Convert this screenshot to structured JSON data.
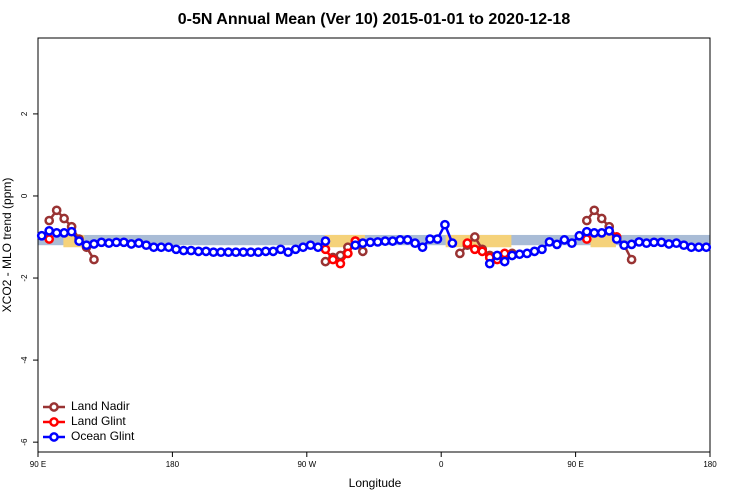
{
  "chart_data": {
    "type": "line",
    "title": "0-5N Annual Mean (Ver 10)   2015-01-01 to 2020-12-18",
    "xlabel": "Longitude",
    "ylabel": "XCO2 - MLO trend (ppm)",
    "xlim": [
      90,
      540
    ],
    "ylim": [
      -6.24,
      3.85
    ],
    "xticks": [
      {
        "value": 90,
        "label": "90 E"
      },
      180,
      {
        "value": 270,
        "label": "90 W"
      },
      {
        "value": 360,
        "label": "0"
      },
      {
        "value": 450,
        "label": "90 E"
      },
      {
        "value": 540,
        "label": "180"
      }
    ],
    "yticks": [
      -6,
      -4,
      -2,
      0,
      2
    ],
    "legend": "bottom-left",
    "bands": [
      {
        "color": "#a9bcd6",
        "x": [
          90,
          540
        ],
        "y": [
          -1.2,
          -0.95
        ]
      },
      {
        "color": "#f5d27a",
        "x": [
          107,
          121
        ],
        "y": [
          -1.25,
          -0.95
        ]
      },
      {
        "color": "#f5d27a",
        "x": [
          282,
          309
        ],
        "y": [
          -1.25,
          -0.95
        ]
      },
      {
        "color": "#f5d27a",
        "x": [
          363,
          407
        ],
        "y": [
          -1.25,
          -0.95
        ]
      },
      {
        "color": "#f5d27a",
        "x": [
          460,
          477
        ],
        "y": [
          -1.25,
          -0.95
        ]
      }
    ],
    "series": [
      {
        "name": "Land Nadir",
        "color": "#993333",
        "x": [
          97.5,
          102.5,
          107.5,
          112.5,
          117.5,
          122.5,
          127.5,
          200,
          282.5,
          287.5,
          292.5,
          297.5,
          302.5,
          307.5,
          340,
          372.5,
          377.5,
          382.5,
          387.5,
          392.5,
          402.5,
          407.5,
          430,
          457.5,
          462.5,
          467.5,
          472.5,
          477.5,
          482.5,
          487.5
        ],
        "values": [
          -0.6,
          -0.35,
          -0.55,
          -0.75,
          -1.05,
          -1.25,
          -1.55,
          null,
          -1.6,
          -1.5,
          -1.45,
          -1.25,
          -1.1,
          -1.35,
          null,
          -1.4,
          -1.2,
          -1.0,
          -1.3,
          -1.45,
          -1.45,
          -1.4,
          null,
          -0.6,
          -0.35,
          -0.55,
          -0.75,
          -1.0,
          -1.2,
          -1.55
        ]
      },
      {
        "name": "Land Glint",
        "color": "#ff0000",
        "x": [
          97.5,
          200,
          282.5,
          287.5,
          292.5,
          297.5,
          302.5,
          340,
          377.5,
          382.5,
          387.5,
          392.5,
          397.5,
          402.5,
          430,
          457.5,
          462.5,
          477.5
        ],
        "values": [
          -1.05,
          null,
          -1.3,
          -1.55,
          -1.65,
          -1.4,
          -1.1,
          null,
          -1.15,
          -1.3,
          -1.35,
          -1.5,
          -1.55,
          -1.4,
          null,
          -1.05,
          null,
          -1.0
        ]
      },
      {
        "name": "Ocean Glint",
        "color": "#0000ff",
        "x": [
          92.5,
          97.5,
          102.5,
          107.5,
          112.5,
          117.5,
          122.5,
          127.5,
          132.5,
          137.5,
          142.5,
          147.5,
          152.5,
          157.5,
          162.5,
          167.5,
          172.5,
          177.5,
          182.5,
          187.5,
          192.5,
          197.5,
          202.5,
          207.5,
          212.5,
          217.5,
          222.5,
          227.5,
          232.5,
          237.5,
          242.5,
          247.5,
          252.5,
          257.5,
          262.5,
          267.5,
          272.5,
          277.5,
          282.5,
          290,
          302.5,
          307.5,
          312.5,
          317.5,
          322.5,
          327.5,
          332.5,
          337.5,
          342.5,
          347.5,
          352.5,
          357.5,
          362.5,
          367.5,
          380,
          392.5,
          397.5,
          402.5,
          407.5,
          412.5,
          417.5,
          422.5,
          427.5,
          432.5,
          437.5,
          442.5,
          447.5,
          452.5,
          457.5,
          462.5,
          467.5,
          472.5,
          477.5,
          482.5,
          487.5,
          492.5,
          497.5,
          502.5,
          507.5,
          512.5,
          517.5,
          522.5,
          527.5,
          532.5,
          537.5
        ],
        "values": [
          -0.97,
          -0.85,
          -0.9,
          -0.9,
          -0.87,
          -1.1,
          -1.2,
          -1.17,
          -1.13,
          -1.15,
          -1.13,
          -1.13,
          -1.17,
          -1.15,
          -1.2,
          -1.25,
          -1.25,
          -1.25,
          -1.3,
          -1.33,
          -1.33,
          -1.35,
          -1.35,
          -1.37,
          -1.37,
          -1.37,
          -1.37,
          -1.37,
          -1.37,
          -1.37,
          -1.35,
          -1.35,
          -1.3,
          -1.37,
          -1.3,
          -1.25,
          -1.2,
          -1.25,
          -1.1,
          null,
          -1.2,
          -1.15,
          -1.13,
          -1.12,
          -1.1,
          -1.1,
          -1.07,
          -1.07,
          -1.15,
          -1.25,
          -1.05,
          -1.05,
          -0.7,
          -1.15,
          null,
          -1.65,
          -1.45,
          -1.6,
          -1.45,
          -1.42,
          -1.4,
          -1.35,
          -1.3,
          -1.12,
          -1.18,
          -1.07,
          -1.15,
          -0.97,
          -0.87,
          -0.9,
          -0.9,
          -0.85,
          -1.05,
          -1.2,
          -1.18,
          -1.12,
          -1.15,
          -1.13,
          -1.13,
          -1.17,
          -1.15,
          -1.2,
          -1.25,
          -1.25,
          -1.25
        ]
      }
    ]
  }
}
